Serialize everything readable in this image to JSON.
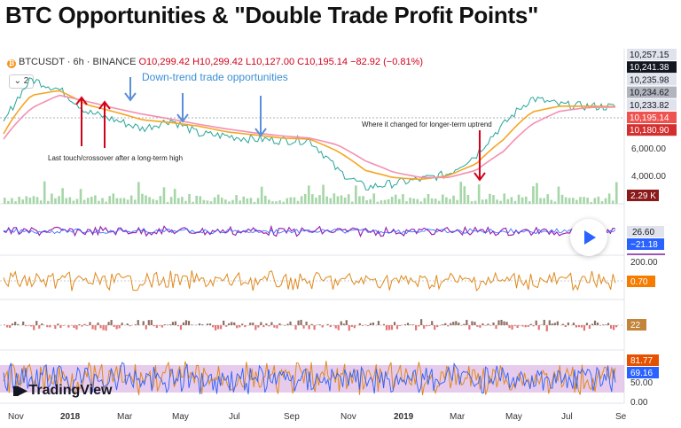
{
  "title": "BTC Opportunities & \"Double Trade Profit Points\"",
  "header": {
    "symbol": "BTCUSDT · 6h · BINANCE",
    "open": "O10,299.42",
    "high": "H10,299.42",
    "low": "L10,127.00",
    "close": "C10,195.14",
    "change": "−82.92 (−0.81%)",
    "collapse_label": "⌄ 2"
  },
  "annotations": {
    "downtrend": "Down-trend trade opportunities",
    "last_touch": "Last touch/crossover after a long-term high",
    "changed": "Where it changed for longer-term uptrend"
  },
  "logo": "TradingView",
  "colors": {
    "price": "#26a69a",
    "ma_orange": "#f5a623",
    "ma_pink": "#f48fb1",
    "blue_arrow": "#5b8fd9",
    "red_arrow": "#d0021b",
    "volume": "#a5d6a7",
    "osc_purple": "#9c27b0",
    "osc_blue": "#2962ff",
    "osc_orange": "#e08a1e",
    "band_fill": "#e1bee7"
  },
  "chart_data": {
    "type": "line",
    "x_ticks": [
      "Nov",
      "2018",
      "Mar",
      "May",
      "Jul",
      "Sep",
      "Nov",
      "2019",
      "Mar",
      "May",
      "Jul",
      "Se"
    ],
    "x": [
      "2017-11",
      "2017-12",
      "2018-01",
      "2018-02",
      "2018-03",
      "2018-04",
      "2018-05",
      "2018-06",
      "2018-07",
      "2018-08",
      "2018-09",
      "2018-10",
      "2018-11",
      "2018-12",
      "2019-01",
      "2019-02",
      "2019-03",
      "2019-04",
      "2019-05",
      "2019-06",
      "2019-07",
      "2019-08",
      "2019-09"
    ],
    "price_scale_labels": [
      "6,000.00",
      "4,000.00"
    ],
    "price_tags": [
      {
        "label": "10,257.15",
        "bg": "#e0e3eb",
        "fg": "#131722"
      },
      {
        "label": "10,241.38",
        "bg": "#131722",
        "fg": "#ffffff"
      },
      {
        "label": "10,235.98",
        "bg": "#e0e3eb",
        "fg": "#131722"
      },
      {
        "label": "10,234.62",
        "bg": "#b2b5be",
        "fg": "#131722"
      },
      {
        "label": "10,233.82",
        "bg": "#e0e3eb",
        "fg": "#131722"
      },
      {
        "label": "10,195.14",
        "bg": "#ef5350",
        "fg": "#ffffff"
      },
      {
        "label": "10,180.90",
        "bg": "#d32f2f",
        "fg": "#ffffff"
      }
    ],
    "volume_tag": "2.29 K",
    "series": [
      {
        "values": [
          8000,
          15000,
          13000,
          9500,
          8500,
          7500,
          8500,
          7000,
          6800,
          6500,
          6400,
          6400,
          4200,
          3300,
          3500,
          3700,
          4000,
          5200,
          8000,
          11500,
          10500,
          10300,
          10195
        ]
      },
      {
        "values": [
          7000,
          12000,
          12800,
          10500,
          9500,
          8500,
          8200,
          7800,
          7200,
          6900,
          6600,
          6500,
          5500,
          4200,
          3800,
          3700,
          3900,
          4600,
          6500,
          9500,
          10300,
          10300,
          10235
        ]
      },
      {
        "values": [
          6500,
          10000,
          12000,
          11000,
          10000,
          9200,
          8600,
          8000,
          7500,
          7100,
          6800,
          6600,
          6000,
          4800,
          4100,
          3800,
          3800,
          4200,
          5500,
          8000,
          9600,
          10100,
          10180
        ]
      }
    ],
    "indicators": [
      {
        "values": [
          26.6,
          -21.18
        ]
      },
      {
        "scale_label": "200.00",
        "values": [
          0.7
        ]
      },
      {
        "values": [
          22
        ]
      },
      {
        "scale_labels": [
          "50.00",
          "0.00"
        ],
        "values": [
          81.77,
          69.16
        ]
      }
    ]
  }
}
